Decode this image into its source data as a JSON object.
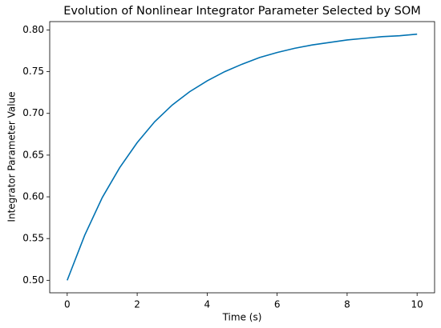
{
  "chart_data": {
    "type": "line",
    "title": "Evolution of Nonlinear Integrator Parameter Selected by SOM",
    "x_label": "Time (s)",
    "y_label": "Integrator Parameter Value",
    "x": [
      0,
      0.5,
      1,
      1.5,
      2,
      2.5,
      3,
      3.5,
      4,
      4.5,
      5,
      5.5,
      6,
      6.5,
      7,
      7.5,
      8,
      8.5,
      9,
      9.5,
      10
    ],
    "series": [
      {
        "color": "#0072b2",
        "values": [
          0.5,
          0.554,
          0.599,
          0.635,
          0.665,
          0.69,
          0.71,
          0.726,
          0.739,
          0.75,
          0.759,
          0.767,
          0.773,
          0.778,
          0.782,
          0.785,
          0.788,
          0.79,
          0.792,
          0.793,
          0.795
        ]
      }
    ],
    "xlim": [
      -0.5,
      10.5
    ],
    "ylim": [
      0.485,
      0.81
    ],
    "xticks": [
      0,
      2,
      4,
      6,
      8,
      10
    ],
    "yticks": [
      {
        "value": 0.5,
        "label": "0.50"
      },
      {
        "value": 0.55,
        "label": "0.55"
      },
      {
        "value": 0.6,
        "label": "0.60"
      },
      {
        "value": 0.65,
        "label": "0.65"
      },
      {
        "value": 0.7,
        "label": "0.70"
      },
      {
        "value": 0.75,
        "label": "0.75"
      },
      {
        "value": 0.8,
        "label": "0.80"
      }
    ],
    "grid": false
  }
}
